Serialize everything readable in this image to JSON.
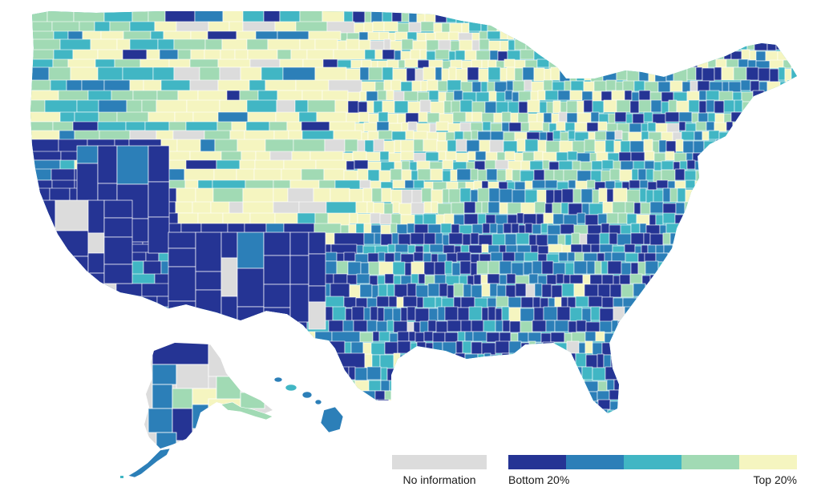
{
  "colors": {
    "no_info": "#dcdcdc",
    "border": "#ffffff",
    "scale": [
      "#253494",
      "#2c7fb8",
      "#41b6c4",
      "#a1dab4",
      "#f5f5c0"
    ]
  },
  "legend": {
    "no_info_label": "No information",
    "low_label": "Bottom 20%",
    "high_label": "Top 20%"
  }
}
